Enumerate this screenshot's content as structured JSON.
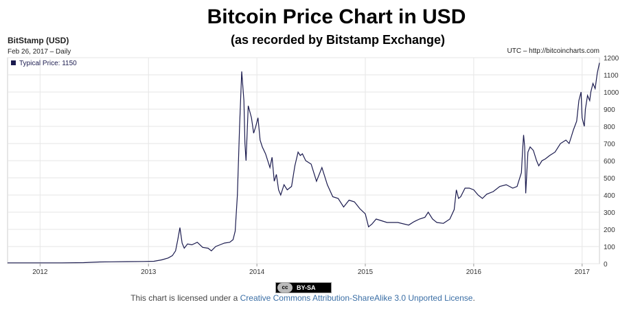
{
  "chart_data": {
    "type": "line",
    "title": "Bitcoin Price Chart in USD",
    "subtitle": "(as recorded by Bitstamp Exchange)",
    "source_label": "BitStamp (USD)",
    "date_label": "Feb 26, 2017 – Daily",
    "credit": "UTC – http://bitcoincharts.com",
    "legend": "Typical Price: 1150",
    "x_ticks": [
      "2012",
      "2013",
      "2014",
      "2015",
      "2016",
      "2017"
    ],
    "x_tick_values": [
      2012,
      2013,
      2014,
      2015,
      2016,
      2017
    ],
    "xlim": [
      2011.7,
      2017.16
    ],
    "ylim": [
      0,
      1200
    ],
    "y_ticks": [
      0,
      100,
      200,
      300,
      400,
      500,
      600,
      700,
      800,
      900,
      1000,
      1100,
      1200
    ],
    "series": [
      {
        "name": "Typical Price",
        "color": "#1a1a4e",
        "x": [
          2011.7,
          2011.85,
          2012.0,
          2012.2,
          2012.4,
          2012.55,
          2012.65,
          2012.8,
          2012.95,
          2013.05,
          2013.12,
          2013.18,
          2013.22,
          2013.25,
          2013.27,
          2013.29,
          2013.31,
          2013.33,
          2013.36,
          2013.4,
          2013.45,
          2013.5,
          2013.55,
          2013.58,
          2013.62,
          2013.66,
          2013.7,
          2013.75,
          2013.78,
          2013.8,
          2013.82,
          2013.84,
          2013.86,
          2013.88,
          2013.89,
          2013.9,
          2013.92,
          2013.95,
          2013.97,
          2013.99,
          2014.01,
          2014.03,
          2014.05,
          2014.08,
          2014.12,
          2014.14,
          2014.16,
          2014.18,
          2014.2,
          2014.22,
          2014.25,
          2014.28,
          2014.32,
          2014.35,
          2014.38,
          2014.4,
          2014.42,
          2014.45,
          2014.5,
          2014.55,
          2014.6,
          2014.65,
          2014.7,
          2014.75,
          2014.8,
          2014.85,
          2014.9,
          2014.95,
          2015.0,
          2015.03,
          2015.06,
          2015.1,
          2015.15,
          2015.2,
          2015.3,
          2015.4,
          2015.45,
          2015.5,
          2015.55,
          2015.58,
          2015.62,
          2015.66,
          2015.72,
          2015.78,
          2015.82,
          2015.84,
          2015.86,
          2015.88,
          2015.92,
          2015.96,
          2016.0,
          2016.04,
          2016.08,
          2016.12,
          2016.18,
          2016.24,
          2016.3,
          2016.36,
          2016.4,
          2016.44,
          2016.45,
          2016.46,
          2016.47,
          2016.48,
          2016.5,
          2016.52,
          2016.55,
          2016.58,
          2016.6,
          2016.63,
          2016.66,
          2016.7,
          2016.75,
          2016.8,
          2016.85,
          2016.88,
          2016.9,
          2016.92,
          2016.95,
          2016.97,
          2016.99,
          2017.0,
          2017.02,
          2017.03,
          2017.05,
          2017.07,
          2017.08,
          2017.1,
          2017.12,
          2017.14,
          2017.16
        ],
        "y": [
          5,
          5,
          5,
          5,
          6,
          10,
          11,
          12,
          13,
          14,
          22,
          33,
          47,
          75,
          140,
          210,
          120,
          90,
          115,
          110,
          125,
          95,
          90,
          75,
          100,
          110,
          120,
          125,
          140,
          190,
          400,
          800,
          1120,
          950,
          700,
          600,
          920,
          850,
          760,
          800,
          850,
          720,
          680,
          640,
          560,
          620,
          480,
          520,
          430,
          400,
          460,
          430,
          450,
          570,
          650,
          630,
          640,
          600,
          580,
          480,
          560,
          460,
          390,
          380,
          330,
          370,
          360,
          320,
          290,
          215,
          230,
          260,
          250,
          240,
          240,
          225,
          245,
          260,
          270,
          300,
          260,
          240,
          235,
          260,
          315,
          430,
          380,
          390,
          440,
          440,
          430,
          400,
          380,
          405,
          420,
          450,
          460,
          440,
          450,
          530,
          650,
          750,
          680,
          410,
          650,
          680,
          660,
          600,
          570,
          600,
          610,
          630,
          650,
          700,
          720,
          700,
          740,
          780,
          830,
          950,
          1000,
          850,
          800,
          900,
          980,
          950,
          1000,
          1050,
          1020,
          1110,
          1170
        ]
      }
    ]
  },
  "footer": {
    "cc_icon": "cc",
    "cc_label": "BY-SA",
    "license_prefix": "This chart is licensed under a ",
    "license_link": "Creative Commons Attribution-ShareAlike 3.0 Unported License",
    "license_suffix": "."
  }
}
